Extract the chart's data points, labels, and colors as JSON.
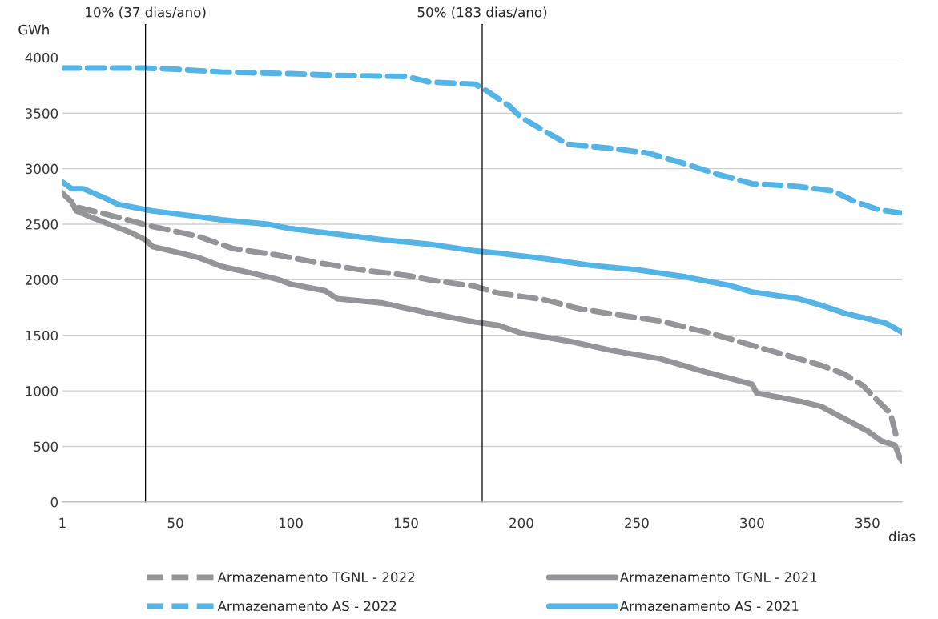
{
  "chart_data": {
    "type": "line",
    "ylabel": "GWh",
    "xlabel": "dias",
    "xlim": [
      1,
      365
    ],
    "xticks": [
      1,
      50,
      100,
      150,
      200,
      250,
      300,
      350
    ],
    "ylim": [
      0,
      4000
    ],
    "yticks": [
      0,
      500,
      1000,
      1500,
      2000,
      2500,
      3000,
      3500,
      4000
    ],
    "grid": "y",
    "legend": "bottom",
    "marker": "none",
    "ref_lines": [
      {
        "axis": "x",
        "value": 37,
        "label": "10% (37 dias/ano)",
        "color": "#000000"
      },
      {
        "axis": "x",
        "value": 183,
        "label": "50% (183 dias/ano)",
        "color": "#000000"
      }
    ],
    "series": [
      {
        "name": "Armazenamento TGNL - 2022",
        "color": "#939598",
        "line_style": "dashed",
        "x": [
          8,
          20,
          40,
          60,
          75,
          95,
          110,
          130,
          150,
          160,
          180,
          190,
          210,
          225,
          240,
          260,
          280,
          300,
          320,
          330,
          340,
          348,
          355,
          360,
          363
        ],
        "values": [
          2650,
          2590,
          2480,
          2390,
          2280,
          2220,
          2160,
          2090,
          2040,
          2000,
          1940,
          1880,
          1820,
          1740,
          1690,
          1630,
          1530,
          1410,
          1290,
          1230,
          1150,
          1050,
          900,
          800,
          550
        ]
      },
      {
        "name": "Armazenamento TGNL - 2021",
        "color": "#939598",
        "line_style": "solid",
        "x": [
          1,
          5,
          7,
          15,
          20,
          30,
          37,
          40,
          50,
          60,
          70,
          85,
          95,
          100,
          115,
          120,
          140,
          160,
          180,
          190,
          200,
          220,
          240,
          260,
          280,
          300,
          302,
          320,
          330,
          340,
          350,
          356,
          362,
          364,
          365
        ],
        "values": [
          2780,
          2700,
          2620,
          2550,
          2510,
          2430,
          2360,
          2300,
          2250,
          2200,
          2120,
          2050,
          2000,
          1960,
          1900,
          1830,
          1790,
          1700,
          1620,
          1590,
          1520,
          1450,
          1360,
          1290,
          1170,
          1060,
          980,
          910,
          860,
          750,
          640,
          550,
          510,
          400,
          370
        ]
      },
      {
        "name": "Armazenamento AS - 2022",
        "color": "#55b4e6",
        "line_style": "dashed",
        "x": [
          1,
          37,
          50,
          70,
          100,
          120,
          150,
          160,
          180,
          185,
          195,
          200,
          210,
          220,
          240,
          255,
          270,
          285,
          300,
          320,
          335,
          345,
          355,
          365
        ],
        "values": [
          3905,
          3905,
          3895,
          3870,
          3855,
          3840,
          3830,
          3780,
          3760,
          3700,
          3560,
          3460,
          3340,
          3220,
          3180,
          3140,
          3050,
          2950,
          2865,
          2840,
          2800,
          2700,
          2630,
          2600
        ]
      },
      {
        "name": "Armazenamento AS - 2021",
        "color": "#55b4e6",
        "line_style": "solid",
        "x": [
          1,
          5,
          10,
          20,
          25,
          40,
          55,
          70,
          90,
          100,
          120,
          140,
          160,
          180,
          190,
          210,
          230,
          250,
          270,
          290,
          300,
          320,
          330,
          340,
          350,
          358,
          365
        ],
        "values": [
          2880,
          2820,
          2820,
          2730,
          2680,
          2620,
          2580,
          2540,
          2500,
          2460,
          2410,
          2360,
          2320,
          2260,
          2240,
          2190,
          2130,
          2090,
          2030,
          1950,
          1890,
          1830,
          1770,
          1700,
          1650,
          1610,
          1530
        ]
      }
    ]
  }
}
